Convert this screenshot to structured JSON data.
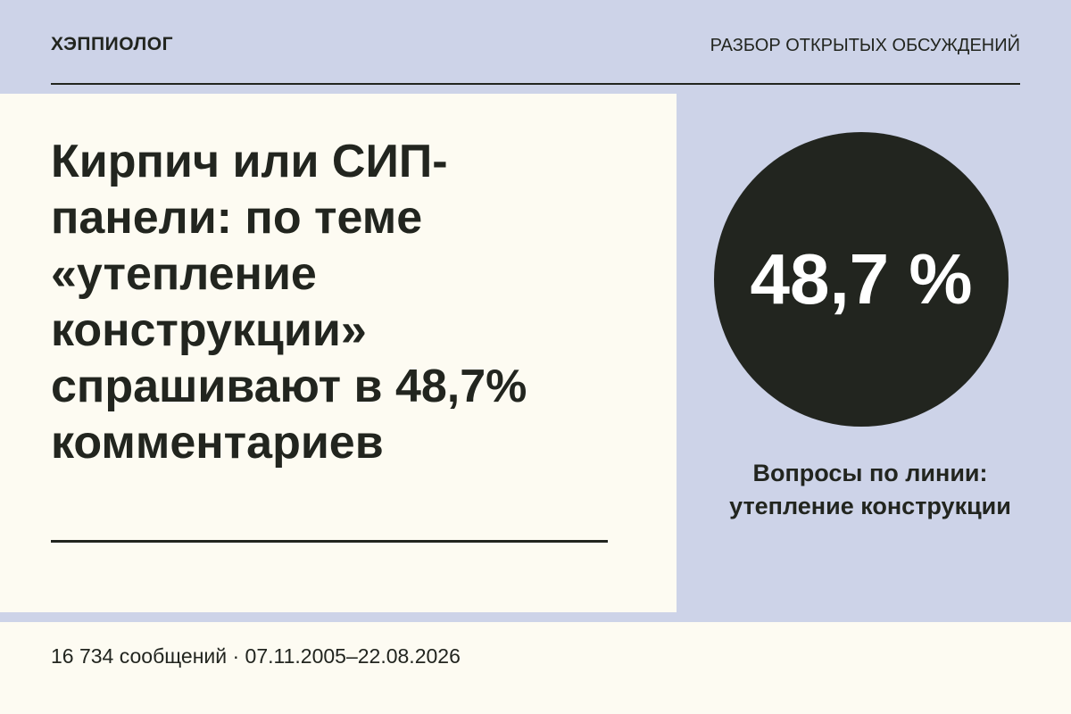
{
  "header": {
    "brand": "ХЭППИОЛОГ",
    "section": "РАЗБОР ОТКРЫТЫХ ОБСУЖДЕНИЙ"
  },
  "card": {
    "title": "Кирпич или СИП-панели: по теме «утепление конструкции» спрашивают в 48,7% комментариев"
  },
  "stat": {
    "value": "48,7 %",
    "caption": "Вопросы по линии: утепление конструкции"
  },
  "footer": {
    "text": "16 734 сообщений · 07.11.2005–22.08.2026"
  }
}
